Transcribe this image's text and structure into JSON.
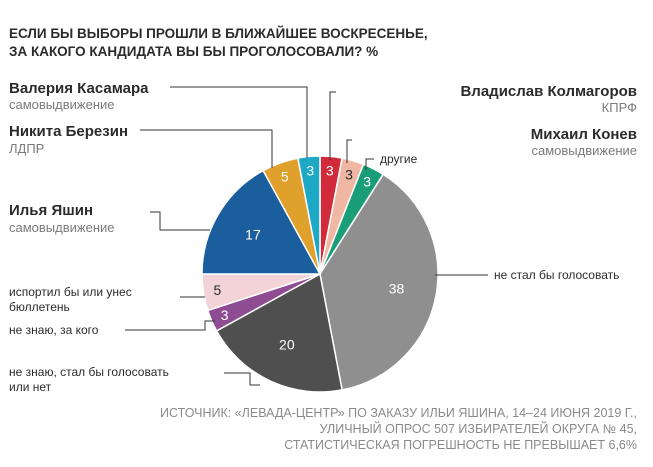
{
  "chart_data": {
    "type": "pie",
    "title_lines": [
      "ЕСЛИ БЫ ВЫБОРЫ ПРОШЛИ В БЛИЖАЙШЕЕ ВОСКРЕСЕНЬЕ,",
      "ЗА КАКОГО КАНДИДАТА ВЫ БЫ ПРОГОЛОСОВАЛИ? %"
    ],
    "slices": [
      {
        "label": "Владислав Колмагоров",
        "sub": "КПРФ",
        "value": 3,
        "color": "#d12b3b"
      },
      {
        "label": "Михаил Конев",
        "sub": "самовыдвижение",
        "value": 3,
        "color": "#efb7a4"
      },
      {
        "label": "другие",
        "sub": "",
        "value": 3,
        "color": "#1a9e78"
      },
      {
        "label": "не стал бы голосовать",
        "sub": "",
        "value": 38,
        "color": "#8f8f8f"
      },
      {
        "label": "не знаю, стал бы голосовать или нет",
        "sub": "",
        "value": 20,
        "color": "#4f4f4f"
      },
      {
        "label": "не знаю, за кого",
        "sub": "",
        "value": 3,
        "color": "#8e4c93"
      },
      {
        "label": "испортил бы или унес бюллетень",
        "sub": "",
        "value": 5,
        "color": "#f4d3d8"
      },
      {
        "label": "Илья Яшин",
        "sub": "самовыдвижение",
        "value": 17,
        "color": "#1b5e9d"
      },
      {
        "label": "Никита Березин",
        "sub": "ЛДПР",
        "value": 5,
        "color": "#e0a12c"
      },
      {
        "label": "Валерия Касамара",
        "sub": "самовыдвижение",
        "value": 3,
        "color": "#1da8c6"
      }
    ]
  },
  "source_lines": [
    "ИСТОЧНИК: «ЛЕВАДА-ЦЕНТР» ПО ЗАКАЗУ ИЛЬИ ЯШИНА, 14–24 ИЮНЯ 2019 Г.,",
    "УЛИЧНЫЙ ОПРОС 507 ИЗБИРАТЕЛЕЙ ОКРУГА № 45,",
    "СТАТИСТИЧЕСКАЯ ПОГРЕШНОСТЬ НЕ ПРЕВЫШАЕТ 6,6%"
  ],
  "label_lines": {
    "spoiled": [
      "испортил бы или унес",
      "бюллетень"
    ],
    "undecided_vote": [
      "не знаю, стал бы голосовать",
      "или нет"
    ]
  }
}
